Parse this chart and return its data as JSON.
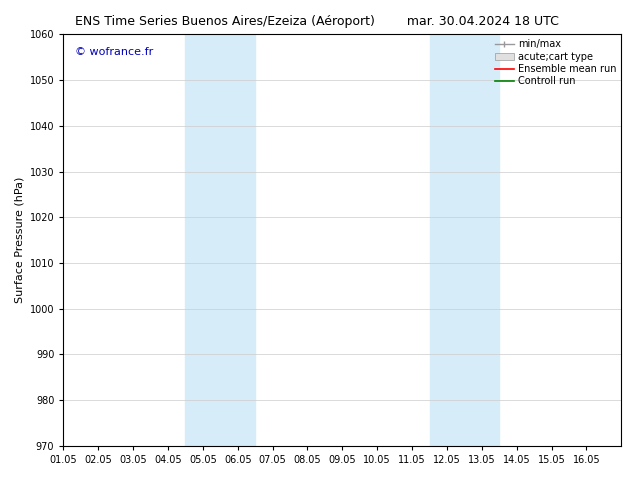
{
  "title_left": "ENS Time Series Buenos Aires/Ezeiza (Aéroport)",
  "title_right": "mar. 30.04.2024 18 UTC",
  "xlabel": "",
  "ylabel": "Surface Pressure (hPa)",
  "ylim": [
    970,
    1060
  ],
  "yticks": [
    970,
    980,
    990,
    1000,
    1010,
    1020,
    1030,
    1040,
    1050,
    1060
  ],
  "xlim": [
    0,
    16
  ],
  "xtick_labels": [
    "01.05",
    "02.05",
    "03.05",
    "04.05",
    "05.05",
    "06.05",
    "07.05",
    "08.05",
    "09.05",
    "10.05",
    "11.05",
    "12.05",
    "13.05",
    "14.05",
    "15.05",
    "16.05"
  ],
  "xtick_positions": [
    0,
    1,
    2,
    3,
    4,
    5,
    6,
    7,
    8,
    9,
    10,
    11,
    12,
    13,
    14,
    15
  ],
  "shaded_bands": [
    {
      "x_start": 3.5,
      "x_end": 5.5,
      "color": "#d6ecf8"
    },
    {
      "x_start": 10.5,
      "x_end": 12.5,
      "color": "#d6ecf8"
    }
  ],
  "watermark": "© wofrance.fr",
  "watermark_color": "#0000bb",
  "watermark_fontsize": 8,
  "background_color": "#ffffff",
  "plot_bg_color": "#ffffff",
  "grid_color": "#cccccc",
  "title_fontsize": 9,
  "axis_fontsize": 7,
  "ylabel_fontsize": 8,
  "legend_fontsize": 7
}
